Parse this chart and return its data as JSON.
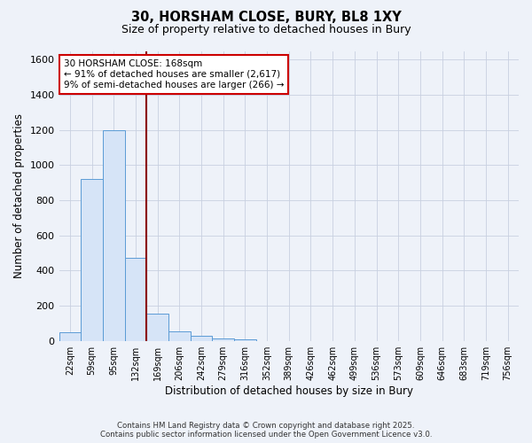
{
  "title1": "30, HORSHAM CLOSE, BURY, BL8 1XY",
  "title2": "Size of property relative to detached houses in Bury",
  "xlabel": "Distribution of detached houses by size in Bury",
  "ylabel": "Number of detached properties",
  "bar_labels": [
    "22sqm",
    "59sqm",
    "95sqm",
    "132sqm",
    "169sqm",
    "206sqm",
    "242sqm",
    "279sqm",
    "316sqm",
    "352sqm",
    "389sqm",
    "426sqm",
    "462sqm",
    "499sqm",
    "536sqm",
    "573sqm",
    "609sqm",
    "646sqm",
    "683sqm",
    "719sqm",
    "756sqm"
  ],
  "bar_values": [
    50,
    920,
    1200,
    475,
    155,
    55,
    30,
    15,
    10,
    0,
    0,
    0,
    0,
    0,
    0,
    0,
    0,
    0,
    0,
    0,
    0
  ],
  "bar_color_fill": "#d6e4f7",
  "bar_color_edge": "#5b9bd5",
  "vline_color": "#8b0000",
  "annotation_line1": "30 HORSHAM CLOSE: 168sqm",
  "annotation_line2": "← 91% of detached houses are smaller (2,617)",
  "annotation_line3": "9% of semi-detached houses are larger (266) →",
  "annotation_box_color": "#ffffff",
  "annotation_box_edge": "#cc0000",
  "ylim": [
    0,
    1650
  ],
  "yticks": [
    0,
    200,
    400,
    600,
    800,
    1000,
    1200,
    1400,
    1600
  ],
  "footer1": "Contains HM Land Registry data © Crown copyright and database right 2025.",
  "footer2": "Contains public sector information licensed under the Open Government Licence v3.0.",
  "bg_color": "#eef2f9",
  "plot_bg_color": "#eef2f9",
  "grid_color": "#c8d0e0"
}
